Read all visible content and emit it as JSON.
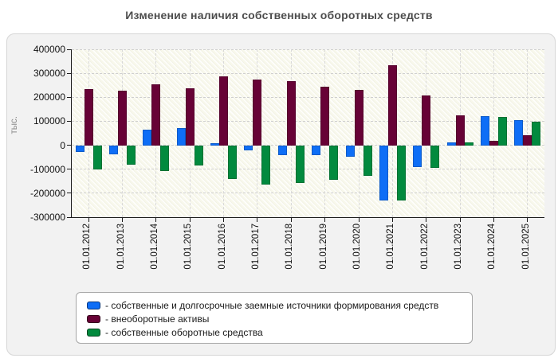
{
  "chart_data": {
    "type": "bar",
    "title": "Изменение наличия собственных оборотных средств",
    "xlabel": "",
    "ylabel": "тыс.",
    "ylim": [
      -300000,
      400000
    ],
    "ytick_step": 100000,
    "grid": true,
    "legend_position": "bottom",
    "categories": [
      "01.01.2012",
      "01.01.2013",
      "01.01.2014",
      "01.01.2015",
      "01.01.2016",
      "01.01.2017",
      "01.01.2018",
      "01.01.2019",
      "01.01.2020",
      "01.01.2021",
      "01.01.2022",
      "01.01.2023",
      "01.01.2024",
      "01.01.2025"
    ],
    "series": [
      {
        "name": "- собственные и долгосрочные заемные источники формирования средств",
        "key": "sources",
        "color": "#0e6ef6",
        "values": [
          -28000,
          -39000,
          66000,
          70000,
          7000,
          -23000,
          -40000,
          -40000,
          -49000,
          -231000,
          -91000,
          12000,
          120000,
          104000
        ]
      },
      {
        "name": "- внеоборотные активы",
        "key": "assets",
        "color": "#670236",
        "values": [
          234000,
          226000,
          255000,
          239000,
          286000,
          273000,
          266000,
          245000,
          232000,
          332000,
          206000,
          125000,
          19000,
          41000
        ]
      },
      {
        "name": "- собственные оборотные средства",
        "key": "working-capital",
        "color": "#028a3e",
        "values": [
          -100000,
          -81000,
          -108000,
          -86000,
          -140000,
          -163000,
          -157000,
          -144000,
          -129000,
          -231000,
          -94000,
          11000,
          118000,
          99000
        ]
      }
    ]
  }
}
